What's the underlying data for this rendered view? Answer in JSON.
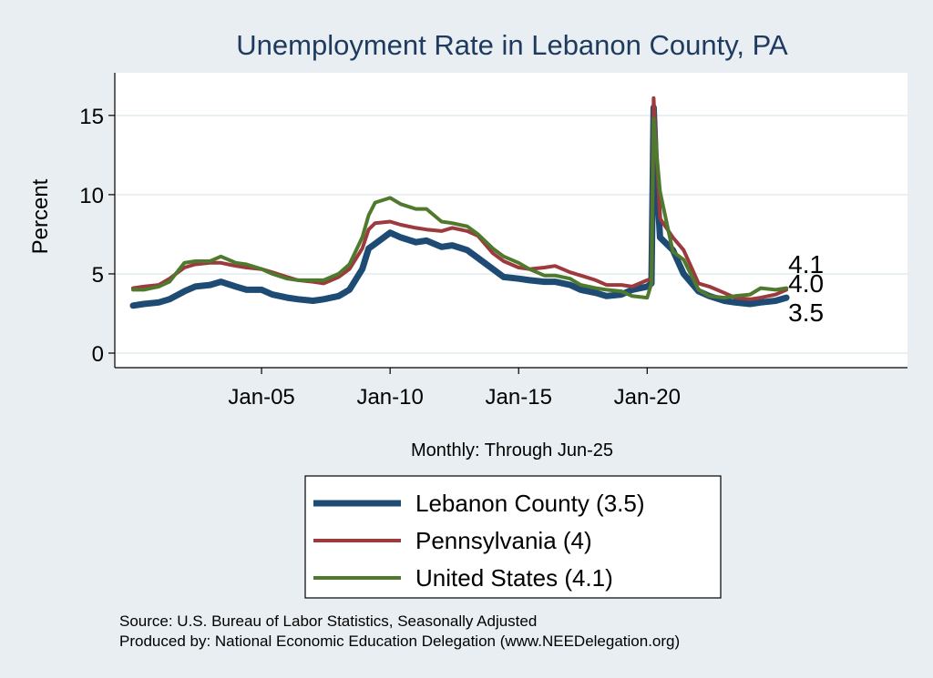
{
  "chart_data": {
    "type": "line",
    "title": "Unemployment Rate in Lebanon  County, PA",
    "ylabel": "Percent",
    "xlabel": "Monthly: Through Jun-25",
    "ylim": [
      0,
      17
    ],
    "xlim": [
      "2000-01",
      "2029-06"
    ],
    "yticks": [
      0,
      5,
      10,
      15
    ],
    "xticks": [
      {
        "label": "Jan-05",
        "date": "2005-01"
      },
      {
        "label": "Jan-10",
        "date": "2010-01"
      },
      {
        "label": "Jan-15",
        "date": "2015-01"
      },
      {
        "label": "Jan-20",
        "date": "2020-01"
      }
    ],
    "grid": true,
    "legend_position": "bottom",
    "series": [
      {
        "name": "Lebanon  County (3.5)",
        "end_label": "3.5",
        "color": "#1e4b73",
        "points": [
          [
            "2000-01",
            3.0
          ],
          [
            "2000-06",
            3.1
          ],
          [
            "2001-01",
            3.2
          ],
          [
            "2001-06",
            3.4
          ],
          [
            "2002-01",
            3.9
          ],
          [
            "2002-06",
            4.2
          ],
          [
            "2003-01",
            4.3
          ],
          [
            "2003-06",
            4.5
          ],
          [
            "2004-01",
            4.2
          ],
          [
            "2004-06",
            4.0
          ],
          [
            "2005-01",
            4.0
          ],
          [
            "2005-06",
            3.7
          ],
          [
            "2006-01",
            3.5
          ],
          [
            "2006-06",
            3.4
          ],
          [
            "2007-01",
            3.3
          ],
          [
            "2007-06",
            3.4
          ],
          [
            "2008-01",
            3.6
          ],
          [
            "2008-06",
            4.0
          ],
          [
            "2008-12",
            5.3
          ],
          [
            "2009-03",
            6.6
          ],
          [
            "2009-06",
            6.9
          ],
          [
            "2010-01",
            7.6
          ],
          [
            "2010-06",
            7.3
          ],
          [
            "2011-01",
            7.0
          ],
          [
            "2011-06",
            7.1
          ],
          [
            "2012-01",
            6.7
          ],
          [
            "2012-06",
            6.8
          ],
          [
            "2013-01",
            6.5
          ],
          [
            "2013-06",
            6.0
          ],
          [
            "2014-01",
            5.3
          ],
          [
            "2014-06",
            4.8
          ],
          [
            "2015-01",
            4.7
          ],
          [
            "2015-06",
            4.6
          ],
          [
            "2016-01",
            4.5
          ],
          [
            "2016-06",
            4.5
          ],
          [
            "2017-01",
            4.3
          ],
          [
            "2017-06",
            4.0
          ],
          [
            "2018-01",
            3.8
          ],
          [
            "2018-06",
            3.6
          ],
          [
            "2019-01",
            3.7
          ],
          [
            "2019-06",
            4.0
          ],
          [
            "2020-01",
            4.2
          ],
          [
            "2020-03",
            4.4
          ],
          [
            "2020-04",
            15.5
          ],
          [
            "2020-05",
            12.0
          ],
          [
            "2020-07",
            7.3
          ],
          [
            "2021-01",
            6.5
          ],
          [
            "2021-06",
            5.0
          ],
          [
            "2022-01",
            3.9
          ],
          [
            "2022-06",
            3.6
          ],
          [
            "2023-01",
            3.3
          ],
          [
            "2023-06",
            3.2
          ],
          [
            "2024-01",
            3.1
          ],
          [
            "2024-06",
            3.2
          ],
          [
            "2025-01",
            3.3
          ],
          [
            "2025-06",
            3.5
          ]
        ]
      },
      {
        "name": "Pennsylvania (4)",
        "end_label": "4.0",
        "color": "#9c3a3e",
        "points": [
          [
            "2000-01",
            4.1
          ],
          [
            "2000-06",
            4.2
          ],
          [
            "2001-01",
            4.3
          ],
          [
            "2001-06",
            4.7
          ],
          [
            "2002-01",
            5.4
          ],
          [
            "2002-06",
            5.6
          ],
          [
            "2003-01",
            5.7
          ],
          [
            "2003-06",
            5.7
          ],
          [
            "2004-01",
            5.5
          ],
          [
            "2004-06",
            5.4
          ],
          [
            "2005-01",
            5.3
          ],
          [
            "2005-06",
            5.1
          ],
          [
            "2006-01",
            4.8
          ],
          [
            "2006-06",
            4.6
          ],
          [
            "2007-01",
            4.5
          ],
          [
            "2007-06",
            4.4
          ],
          [
            "2008-01",
            4.8
          ],
          [
            "2008-06",
            5.3
          ],
          [
            "2008-12",
            6.6
          ],
          [
            "2009-03",
            7.8
          ],
          [
            "2009-06",
            8.2
          ],
          [
            "2010-01",
            8.3
          ],
          [
            "2010-06",
            8.1
          ],
          [
            "2011-01",
            7.9
          ],
          [
            "2011-06",
            7.8
          ],
          [
            "2012-01",
            7.7
          ],
          [
            "2012-06",
            7.9
          ],
          [
            "2013-01",
            7.7
          ],
          [
            "2013-06",
            7.4
          ],
          [
            "2014-01",
            6.3
          ],
          [
            "2014-06",
            5.8
          ],
          [
            "2015-01",
            5.4
          ],
          [
            "2015-06",
            5.3
          ],
          [
            "2016-01",
            5.4
          ],
          [
            "2016-06",
            5.5
          ],
          [
            "2017-01",
            5.1
          ],
          [
            "2017-06",
            4.9
          ],
          [
            "2018-01",
            4.6
          ],
          [
            "2018-06",
            4.3
          ],
          [
            "2019-01",
            4.3
          ],
          [
            "2019-06",
            4.2
          ],
          [
            "2020-01",
            4.6
          ],
          [
            "2020-03",
            4.7
          ],
          [
            "2020-04",
            16.1
          ],
          [
            "2020-05",
            13.5
          ],
          [
            "2020-07",
            8.5
          ],
          [
            "2021-01",
            7.3
          ],
          [
            "2021-06",
            6.5
          ],
          [
            "2022-01",
            4.4
          ],
          [
            "2022-06",
            4.2
          ],
          [
            "2023-01",
            3.8
          ],
          [
            "2023-06",
            3.5
          ],
          [
            "2024-01",
            3.4
          ],
          [
            "2024-06",
            3.5
          ],
          [
            "2025-01",
            3.7
          ],
          [
            "2025-06",
            4.0
          ]
        ]
      },
      {
        "name": "United States (4.1)",
        "end_label": "4.1",
        "color": "#4f7a2e",
        "points": [
          [
            "2000-01",
            4.0
          ],
          [
            "2000-06",
            4.0
          ],
          [
            "2001-01",
            4.2
          ],
          [
            "2001-06",
            4.5
          ],
          [
            "2002-01",
            5.7
          ],
          [
            "2002-06",
            5.8
          ],
          [
            "2003-01",
            5.8
          ],
          [
            "2003-06",
            6.1
          ],
          [
            "2004-01",
            5.7
          ],
          [
            "2004-06",
            5.6
          ],
          [
            "2005-01",
            5.3
          ],
          [
            "2005-06",
            5.0
          ],
          [
            "2006-01",
            4.7
          ],
          [
            "2006-06",
            4.6
          ],
          [
            "2007-01",
            4.6
          ],
          [
            "2007-06",
            4.6
          ],
          [
            "2008-01",
            5.0
          ],
          [
            "2008-06",
            5.6
          ],
          [
            "2008-12",
            7.3
          ],
          [
            "2009-03",
            8.7
          ],
          [
            "2009-06",
            9.5
          ],
          [
            "2010-01",
            9.8
          ],
          [
            "2010-06",
            9.4
          ],
          [
            "2011-01",
            9.1
          ],
          [
            "2011-06",
            9.1
          ],
          [
            "2012-01",
            8.3
          ],
          [
            "2012-06",
            8.2
          ],
          [
            "2013-01",
            8.0
          ],
          [
            "2013-06",
            7.5
          ],
          [
            "2014-01",
            6.6
          ],
          [
            "2014-06",
            6.1
          ],
          [
            "2015-01",
            5.7
          ],
          [
            "2015-06",
            5.3
          ],
          [
            "2016-01",
            4.9
          ],
          [
            "2016-06",
            4.9
          ],
          [
            "2017-01",
            4.7
          ],
          [
            "2017-06",
            4.3
          ],
          [
            "2018-01",
            4.1
          ],
          [
            "2018-06",
            4.0
          ],
          [
            "2019-01",
            3.9
          ],
          [
            "2019-06",
            3.6
          ],
          [
            "2020-01",
            3.5
          ],
          [
            "2020-03",
            4.4
          ],
          [
            "2020-04",
            14.8
          ],
          [
            "2020-05",
            13.2
          ],
          [
            "2020-07",
            10.2
          ],
          [
            "2021-01",
            6.4
          ],
          [
            "2021-06",
            5.9
          ],
          [
            "2022-01",
            4.0
          ],
          [
            "2022-06",
            3.6
          ],
          [
            "2023-01",
            3.5
          ],
          [
            "2023-06",
            3.6
          ],
          [
            "2024-01",
            3.7
          ],
          [
            "2024-06",
            4.1
          ],
          [
            "2025-01",
            4.0
          ],
          [
            "2025-06",
            4.1
          ]
        ]
      }
    ]
  },
  "footer": {
    "source": "Source: U.S. Bureau of Labor Statistics, Seasonally Adjusted",
    "produced": "Produced by: National Economic Education Delegation (www.NEEDelegation.org)"
  }
}
